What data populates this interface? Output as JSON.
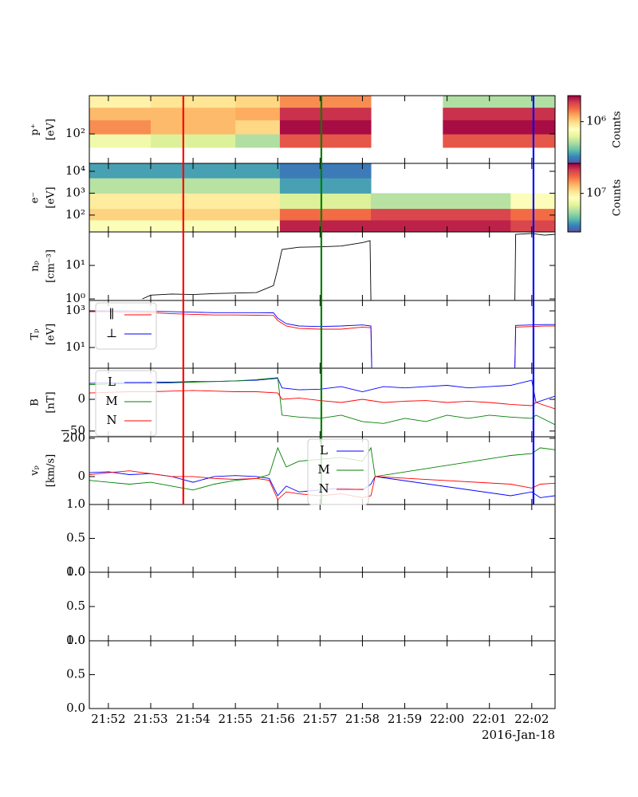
{
  "chart_data": [
    {
      "type": "heatmap",
      "ylabel": "p⁺",
      "yunit": "[eV]",
      "ylog": true,
      "ylim": [
        10,
        2000
      ],
      "yticks": [
        {
          "value": 100,
          "label": "10²"
        }
      ],
      "x": [
        1311.55,
        1313,
        1315,
        1316.05,
        1318.2,
        1319.9,
        1322.55
      ],
      "y": [
        35,
        100,
        300,
        800,
        2000
      ],
      "z": [
        [
          600000,
          1500000,
          1200000,
          800000
        ],
        [
          500000,
          1200000,
          1200000,
          900000
        ],
        [
          400000,
          1000000,
          1300000,
          1000000
        ],
        [
          2000000,
          3000000,
          2500000,
          1500000
        ],
        [
          null,
          null,
          null,
          null
        ],
        [
          2000000,
          3000000,
          2500000,
          400000
        ]
      ],
      "colorbar": {
        "label": "Counts",
        "log": true,
        "clim": [
          158000,
          3160000
        ],
        "ticks": [
          {
            "value": 1000000,
            "label": "10⁶"
          }
        ]
      }
    },
    {
      "type": "heatmap",
      "ylabel": "e⁻",
      "yunit": "[eV]",
      "ylog": true,
      "ylim": [
        17,
        23000
      ],
      "yticks": [
        {
          "value": 100,
          "label": "10²"
        },
        {
          "value": 1000,
          "label": "10³"
        },
        {
          "value": 10000,
          "label": "10⁴"
        }
      ],
      "x": [
        1311.55,
        1316.05,
        1318.2,
        1321.5,
        1322.55
      ],
      "y": [
        17,
        60,
        200,
        1000,
        5000,
        23000
      ],
      "z": [
        [
          8000000,
          12000000,
          10000000,
          5000000,
          3000000
        ],
        [
          30000000,
          20000000,
          6000000,
          3000000,
          2500000
        ],
        [
          30000000,
          25000000,
          5000000,
          null,
          null
        ],
        [
          25000000,
          20000000,
          8000000,
          null,
          null
        ]
      ],
      "colorbar": {
        "label": "Counts",
        "log": true,
        "clim": [
          2000000,
          35000000
        ],
        "ticks": [
          {
            "value": 10000000,
            "label": "10⁷"
          }
        ]
      }
    },
    {
      "type": "line",
      "ylabel": "nₚ",
      "yunit": "[cm⁻³]",
      "ylog": true,
      "ylim": [
        0.9,
        100
      ],
      "yticks": [
        {
          "value": 1,
          "label": "10⁰"
        },
        {
          "value": 10,
          "label": "10¹"
        }
      ],
      "x": [
        1312.8,
        1313,
        1313.5,
        1314,
        1314.5,
        1315,
        1315.5,
        1315.9,
        1316,
        1316.1,
        1316.5,
        1317,
        1317.5,
        1318,
        1318.18,
        1318.2,
        1320,
        1321.6,
        1321.62,
        1322,
        1322.3,
        1322.55
      ],
      "series": [
        {
          "color": "#000000",
          "values": [
            1,
            1.3,
            1.4,
            1.35,
            1.45,
            1.5,
            1.55,
            2.5,
            8,
            30,
            35,
            36,
            38,
            48,
            55,
            0.9,
            null,
            0.9,
            85,
            90,
            80,
            85
          ]
        }
      ]
    },
    {
      "type": "line",
      "ylabel": "Tₚ",
      "yunit": "[eV]",
      "ylog": true,
      "ylim": [
        0.74,
        3700
      ],
      "yticks": [
        {
          "value": 10,
          "label": "10¹"
        },
        {
          "value": 1000,
          "label": "10³"
        }
      ],
      "legend": "upper left",
      "x": [
        1311.55,
        1312,
        1312.5,
        1313,
        1313.5,
        1314,
        1314.5,
        1315,
        1315.5,
        1315.9,
        1316,
        1316.2,
        1316.5,
        1317,
        1317.5,
        1318,
        1318.2,
        1318.22,
        1320,
        1321.6,
        1321.62,
        1322,
        1322.3,
        1322.55
      ],
      "series": [
        {
          "name": "∥",
          "color": "#ff0000",
          "values": [
            900,
            900,
            850,
            800,
            700,
            650,
            600,
            600,
            580,
            560,
            300,
            150,
            110,
            100,
            100,
            130,
            120,
            0.8,
            null,
            0.8,
            130,
            140,
            150,
            150
          ]
        },
        {
          "name": "⊥",
          "color": "#0000ff",
          "values": [
            1000,
            1000,
            1000,
            950,
            900,
            850,
            800,
            800,
            800,
            780,
            400,
            200,
            150,
            140,
            150,
            170,
            150,
            0.8,
            null,
            0.8,
            160,
            170,
            180,
            180
          ]
        }
      ]
    },
    {
      "type": "line",
      "ylabel": "B",
      "yunit": "[nT]",
      "ylim": [
        -59,
        49
      ],
      "yticks": [
        {
          "value": -50,
          "label": "−50"
        },
        0
      ],
      "legend": "upper left",
      "x": [
        1311.55,
        1312,
        1312.5,
        1313,
        1313.5,
        1314,
        1314.5,
        1315,
        1315.5,
        1316,
        1316.1,
        1316.5,
        1317,
        1317.5,
        1318,
        1318.5,
        1319,
        1319.5,
        1320,
        1320.5,
        1321,
        1321.5,
        1322,
        1322.1,
        1322.55
      ],
      "series": [
        {
          "name": "L",
          "color": "#0000ff",
          "values": [
            25,
            26,
            26,
            27,
            27,
            28,
            28,
            29,
            30,
            33,
            18,
            15,
            16,
            20,
            12,
            20,
            18,
            20,
            22,
            18,
            20,
            22,
            30,
            -5,
            5
          ]
        },
        {
          "name": "M",
          "color": "#008000",
          "values": [
            23,
            24,
            25,
            25,
            26,
            27,
            28,
            29,
            31,
            34,
            -25,
            -28,
            -30,
            -25,
            -35,
            -38,
            -30,
            -35,
            -25,
            -30,
            -25,
            -28,
            -30,
            -25,
            -40
          ]
        },
        {
          "name": "N",
          "color": "#ff0000",
          "values": [
            10,
            11,
            12,
            12,
            13,
            14,
            13,
            12,
            12,
            10,
            0,
            2,
            -2,
            -5,
            0,
            -5,
            -3,
            -2,
            -5,
            -3,
            -5,
            -8,
            -10,
            -5,
            -15
          ]
        }
      ]
    },
    {
      "type": "line",
      "ylabel": "vₚ",
      "yunit": "[km/s]",
      "ylim": [
        -146,
        208
      ],
      "yticks": [
        0,
        200
      ],
      "legend": "upper center",
      "x": [
        1311.55,
        1312,
        1312.5,
        1313,
        1313.5,
        1314,
        1314.5,
        1315,
        1315.5,
        1315.8,
        1316,
        1316.2,
        1316.5,
        1317,
        1317.5,
        1318,
        1318.2,
        1318.3,
        1321.5,
        1322,
        1322.2,
        1322.55
      ],
      "series": [
        {
          "name": "L",
          "color": "#0000ff",
          "values": [
            20,
            25,
            10,
            15,
            0,
            -30,
            0,
            5,
            0,
            -10,
            -100,
            -50,
            -80,
            -70,
            -60,
            -70,
            -40,
            0,
            -100,
            -80,
            -110,
            -100
          ]
        },
        {
          "name": "M",
          "color": "#008000",
          "values": [
            -20,
            -30,
            -40,
            -30,
            -50,
            -70,
            -40,
            -20,
            -10,
            10,
            150,
            50,
            80,
            90,
            100,
            80,
            150,
            0,
            110,
            120,
            150,
            140
          ]
        },
        {
          "name": "N",
          "color": "#ff0000",
          "values": [
            10,
            20,
            30,
            15,
            0,
            0,
            -10,
            -15,
            -10,
            -20,
            -120,
            -80,
            -90,
            -100,
            -90,
            -110,
            -100,
            0,
            -40,
            -60,
            -40,
            -35
          ]
        }
      ]
    },
    {
      "type": "line",
      "ylim": [
        0,
        1
      ],
      "yticks": [
        {
          "value": 0,
          "label": "0.0"
        },
        {
          "value": 0.5,
          "label": "0.5"
        },
        {
          "value": 1,
          "label": "1.0"
        }
      ]
    },
    {
      "type": "line",
      "ylim": [
        0,
        1
      ],
      "yticks": [
        {
          "value": 0,
          "label": "0.0"
        },
        {
          "value": 0.5,
          "label": "0.5"
        },
        {
          "value": 1,
          "label": "1.0"
        }
      ]
    },
    {
      "type": "line",
      "ylim": [
        0,
        1
      ],
      "yticks": [
        {
          "value": 0,
          "label": "0.0"
        },
        {
          "value": 0.5,
          "label": "0.5"
        },
        {
          "value": 1,
          "label": "1.0"
        }
      ],
      "xlim": [
        1311.55,
        1322.55
      ],
      "xticks": [
        {
          "value": 1312,
          "label": "21:52"
        },
        {
          "value": 1313,
          "label": "21:53"
        },
        {
          "value": 1314,
          "label": "21:54"
        },
        {
          "value": 1315,
          "label": "21:55"
        },
        {
          "value": 1316,
          "label": "21:56"
        },
        {
          "value": 1317,
          "label": "21:57"
        },
        {
          "value": 1318,
          "label": "21:58"
        },
        {
          "value": 1319,
          "label": "21:59"
        },
        {
          "value": 1320,
          "label": "22:00"
        },
        {
          "value": 1321,
          "label": "22:01"
        },
        {
          "value": 1322,
          "label": "22:02"
        }
      ],
      "date": "2016-Jan-18"
    }
  ],
  "time_markers": [
    {
      "x": 1313.77,
      "color": "#ff0000"
    },
    {
      "x": 1317.03,
      "color": "#008000"
    },
    {
      "x": 1322.04,
      "color": "#0000ff"
    }
  ]
}
